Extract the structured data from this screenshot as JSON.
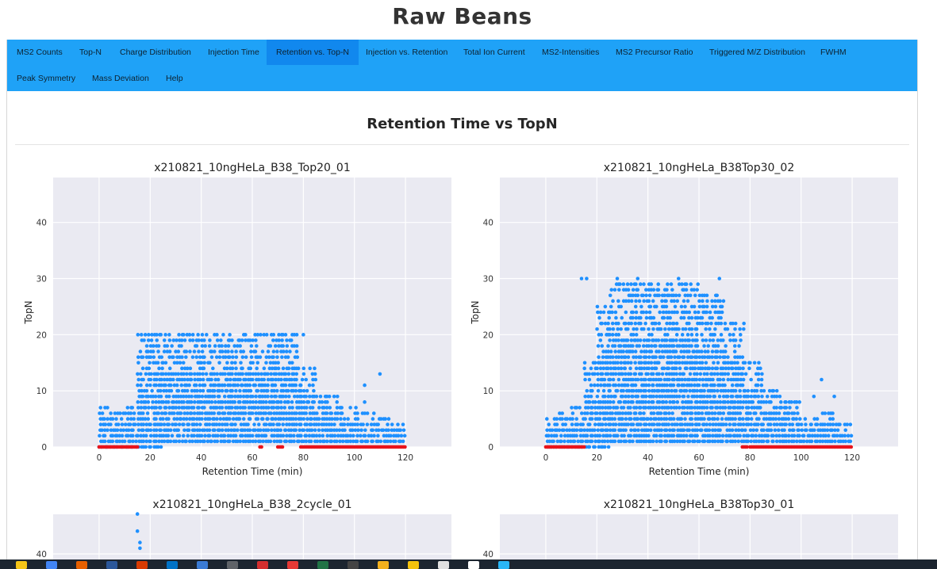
{
  "app": {
    "title": "Raw Beans"
  },
  "nav": {
    "items": [
      {
        "label": "MS2 Counts"
      },
      {
        "label": "Top-N"
      },
      {
        "label": "Charge Distribution"
      },
      {
        "label": "Injection Time"
      },
      {
        "label": "Retention vs. Top-N",
        "active": true
      },
      {
        "label": "Injection vs. Retention"
      },
      {
        "label": "Total Ion Current"
      },
      {
        "label": "MS2-Intensities"
      },
      {
        "label": "MS2 Precursor Ratio"
      },
      {
        "label": "Triggered M/Z Distribution"
      },
      {
        "label": "FWHM"
      },
      {
        "label": "Peak Symmetry"
      },
      {
        "label": "Mass Deviation"
      },
      {
        "label": "Help"
      }
    ]
  },
  "section": {
    "title": "Retention Time vs TopN"
  },
  "colors": {
    "accent": "#1fa2f7",
    "active_tab": "#1188ee",
    "points": "#1e90ff",
    "zero_points": "#e8141c",
    "plot_bg": "#eaeaf2"
  },
  "chart_data": [
    {
      "type": "scatter",
      "title": "x210821_10ngHeLa_B38_Top20_01",
      "xlabel": "Retention Time (min)",
      "ylabel": "TopN",
      "xlim": [
        -18,
        138
      ],
      "ylim": [
        0,
        48
      ],
      "xticks": [
        0,
        20,
        40,
        60,
        80,
        100,
        120
      ],
      "yticks": [
        0,
        10,
        20,
        30,
        40
      ],
      "grid": true,
      "series": [
        {
          "values_desc": "",
          "color": "#1e90ff",
          "bands": [
            [
              0,
              5,
              0,
              7
            ],
            [
              5,
              10,
              0,
              6
            ],
            [
              10,
              15,
              0,
              7
            ],
            [
              15,
              25,
              0,
              20
            ],
            [
              25,
              70,
              1,
              20
            ],
            [
              70,
              78,
              1,
              20
            ],
            [
              78,
              85,
              1,
              14
            ],
            [
              85,
              95,
              1,
              9
            ],
            [
              95,
              101,
              1,
              7
            ],
            [
              101,
              108,
              1,
              6
            ],
            [
              108,
              115,
              1,
              5
            ],
            [
              115,
              120,
              1,
              4
            ]
          ],
          "outliers": [
            [
              110,
              13
            ],
            [
              104,
              11
            ],
            [
              104,
              8
            ],
            [
              72,
              20
            ],
            [
              80,
              20
            ],
            [
              20,
              4
            ],
            [
              23,
              4
            ]
          ]
        },
        {
          "color": "#e8141c",
          "zero_ranges": [
            [
              0,
              15
            ],
            [
              63,
              64
            ],
            [
              70,
              72
            ],
            [
              79,
              120
            ]
          ]
        }
      ]
    },
    {
      "type": "scatter",
      "title": "x210821_10ngHeLa_B38Top30_02",
      "xlabel": "Retention Time (min)",
      "ylabel": "TopN",
      "xlim": [
        -18,
        138
      ],
      "ylim": [
        0,
        48
      ],
      "xticks": [
        0,
        20,
        40,
        60,
        80,
        100,
        120
      ],
      "yticks": [
        0,
        10,
        20,
        30,
        40
      ],
      "grid": true,
      "series": [
        {
          "color": "#1e90ff",
          "bands": [
            [
              0,
              5,
              0,
              5
            ],
            [
              5,
              10,
              0,
              6
            ],
            [
              10,
              15,
              0,
              7
            ],
            [
              15,
              20,
              0,
              15
            ],
            [
              20,
              25,
              0,
              25
            ],
            [
              25,
              45,
              1,
              29
            ],
            [
              45,
              60,
              1,
              29
            ],
            [
              60,
              70,
              1,
              27
            ],
            [
              70,
              78,
              1,
              22
            ],
            [
              78,
              85,
              1,
              15
            ],
            [
              85,
              92,
              1,
              10
            ],
            [
              92,
              100,
              1,
              8
            ],
            [
              100,
              106,
              1,
              5
            ],
            [
              106,
              113,
              1,
              6
            ],
            [
              113,
              120,
              1,
              4
            ]
          ],
          "outliers": [
            [
              14,
              30
            ],
            [
              16,
              30
            ],
            [
              28,
              30
            ],
            [
              36,
              30
            ],
            [
              52,
              30
            ],
            [
              68,
              30
            ],
            [
              108,
              12
            ],
            [
              113,
              9
            ],
            [
              105,
              9
            ],
            [
              38,
              5
            ],
            [
              60,
              4
            ],
            [
              69,
              4
            ]
          ]
        },
        {
          "color": "#e8141c",
          "zero_ranges": [
            [
              0,
              15
            ],
            [
              77,
              79
            ],
            [
              80,
              120
            ]
          ]
        }
      ]
    },
    {
      "type": "scatter",
      "title": "x210821_10ngHeLa_B38_2cycle_01",
      "xlabel": "Retention Time (min)",
      "ylabel": "TopN",
      "xlim": [
        -18,
        138
      ],
      "yticks": [
        40
      ],
      "grid": true,
      "series": [
        {
          "color": "#1e90ff",
          "outliers": [
            [
              15,
              47
            ],
            [
              15,
              44
            ],
            [
              16,
              42
            ],
            [
              16,
              41
            ]
          ]
        }
      ]
    },
    {
      "type": "scatter",
      "title": "x210821_10ngHeLa_B38Top30_01",
      "xlabel": "Retention Time (min)",
      "ylabel": "TopN",
      "xlim": [
        -18,
        138
      ],
      "yticks": [
        40
      ],
      "grid": true,
      "series": []
    }
  ],
  "taskbar": {
    "icons": [
      "start-icon",
      "chrome-icon",
      "firefox-icon",
      "word-icon",
      "office-icon",
      "outlook-icon",
      "files-icon",
      "browser-icon",
      "acrobat-icon",
      "app-icon",
      "excel-icon",
      "terminal-icon",
      "folder-icon",
      "user-icon",
      "paint-icon",
      "notes-icon",
      "globe-icon"
    ]
  }
}
